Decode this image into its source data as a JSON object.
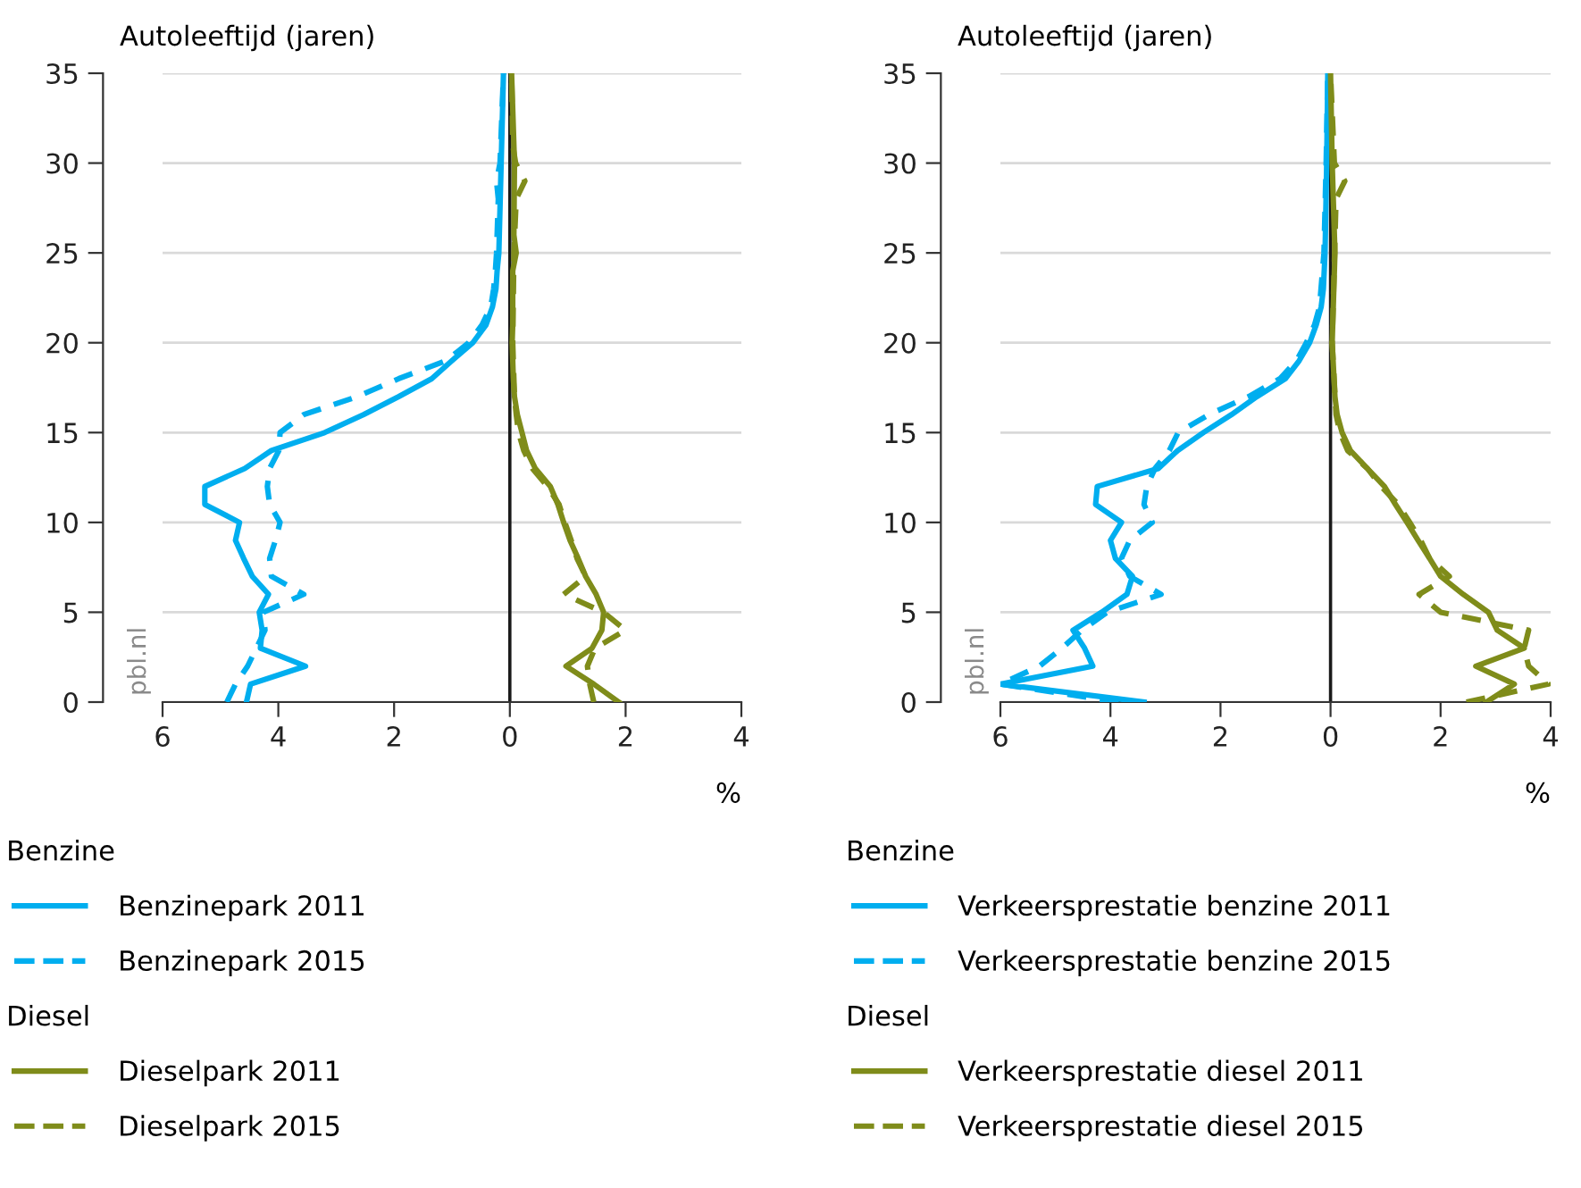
{
  "chart_data": [
    {
      "type": "line",
      "ylabel": "Autoleeftijd (jaren)",
      "xlabel": "%",
      "xlim": [
        -6,
        4
      ],
      "ylim": [
        0,
        35
      ],
      "xticks": [
        {
          "value": -6,
          "label": "6"
        },
        {
          "value": -4,
          "label": "4"
        },
        {
          "value": -2,
          "label": "2"
        },
        0,
        2,
        4
      ],
      "yticks": [
        0,
        5,
        10,
        15,
        20,
        25,
        30,
        35
      ],
      "grid": "y",
      "legend": "bottom",
      "ref_lines": [
        {
          "axis": "x",
          "value": 0,
          "color": "#1a1a1a"
        }
      ],
      "annotations": [
        "pbl.nl",
        "Benzine",
        "Diesel"
      ],
      "series": [
        {
          "name": "Benzinepark 2011",
          "color": "#00aeef",
          "line_style": "solid",
          "x": [
            -4.55,
            -4.48,
            -3.53,
            -4.31,
            -4.28,
            -4.33,
            -4.17,
            -4.45,
            -4.6,
            -4.74,
            -4.67,
            -5.27,
            -5.27,
            -4.58,
            -4.12,
            -3.2,
            -2.53,
            -1.92,
            -1.35,
            -1.0,
            -0.64,
            -0.41,
            -0.3,
            -0.24,
            -0.22,
            -0.19,
            -0.15,
            -0.11
          ],
          "values": [
            0,
            1,
            2,
            3,
            4,
            5,
            6,
            7,
            8,
            9,
            10,
            11,
            12,
            13,
            14,
            15,
            16,
            17,
            18,
            19,
            20,
            21,
            22,
            23,
            24,
            25,
            30,
            35
          ]
        },
        {
          "name": "Benzinepark 2015",
          "color": "#00aeef",
          "line_style": "dashed",
          "x": [
            -4.89,
            -4.74,
            -4.53,
            -4.38,
            -4.23,
            -4.26,
            -3.56,
            -4.12,
            -4.15,
            -4.05,
            -3.97,
            -4.15,
            -4.19,
            -4.15,
            -3.99,
            -3.97,
            -3.56,
            -2.64,
            -1.92,
            -1.1,
            -0.71,
            -0.48,
            -0.33,
            -0.28,
            -0.25,
            -0.23,
            -0.2,
            -0.23,
            -0.17,
            -0.11
          ],
          "values": [
            0,
            1,
            2,
            3,
            4,
            5,
            6,
            7,
            8,
            9,
            10,
            11,
            12,
            13,
            14,
            15,
            16,
            17,
            18,
            19,
            20,
            21,
            22,
            23,
            24,
            25,
            28,
            29,
            30,
            35
          ]
        },
        {
          "name": "Dieselpark 2011",
          "color": "#7f8c1a",
          "line_style": "solid",
          "x": [
            1.88,
            1.45,
            0.97,
            1.42,
            1.59,
            1.62,
            1.49,
            1.31,
            1.18,
            1.04,
            0.93,
            0.83,
            0.7,
            0.44,
            0.29,
            0.21,
            0.13,
            0.08,
            0.06,
            0.05,
            0.04,
            0.05,
            0.05,
            0.05,
            0.05,
            0.11,
            0.07,
            0.08,
            0.03
          ],
          "values": [
            0,
            1,
            2,
            3,
            4,
            5,
            6,
            7,
            8,
            9,
            10,
            11,
            12,
            13,
            14,
            15,
            16,
            17,
            18,
            19,
            20,
            21,
            22,
            23,
            24,
            25,
            26,
            30,
            35
          ]
        },
        {
          "name": "Dieselpark 2015",
          "color": "#7f8c1a",
          "line_style": "dashed",
          "x": [
            1.45,
            1.38,
            1.34,
            1.47,
            2.0,
            1.62,
            0.93,
            1.31,
            1.16,
            1.06,
            0.95,
            0.85,
            0.65,
            0.39,
            0.24,
            0.15,
            0.11,
            0.08,
            0.05,
            0.07,
            0.11,
            0.26,
            0.1,
            0.05,
            0.03
          ],
          "values": [
            0,
            1,
            2,
            3,
            4,
            5,
            6,
            7,
            8,
            9,
            10,
            11,
            12,
            13,
            14,
            15,
            16,
            17,
            20,
            25,
            28,
            29,
            30,
            31,
            35
          ]
        }
      ]
    },
    {
      "type": "line",
      "ylabel": "Autoleeftijd (jaren)",
      "xlabel": "%",
      "xlim": [
        -6,
        4
      ],
      "ylim": [
        0,
        35
      ],
      "xticks": [
        {
          "value": -6,
          "label": "6"
        },
        {
          "value": -4,
          "label": "4"
        },
        {
          "value": -2,
          "label": "2"
        },
        0,
        2,
        4
      ],
      "yticks": [
        0,
        5,
        10,
        15,
        20,
        25,
        30,
        35
      ],
      "grid": "y",
      "legend": "bottom",
      "ref_lines": [
        {
          "axis": "x",
          "value": 0,
          "color": "#1a1a1a"
        }
      ],
      "annotations": [
        "pbl.nl",
        "Benzine",
        "Diesel"
      ],
      "series": [
        {
          "name": "Verkeersprestatie benzine 2011",
          "color": "#00aeef",
          "line_style": "solid",
          "x": [
            -3.39,
            -6.0,
            -4.32,
            -4.47,
            -4.68,
            -4.16,
            -3.7,
            -3.6,
            -3.91,
            -4.0,
            -3.8,
            -4.27,
            -4.24,
            -3.13,
            -2.78,
            -2.31,
            -1.8,
            -1.34,
            -0.82,
            -0.57,
            -0.38,
            -0.26,
            -0.17,
            -0.13,
            -0.1,
            -0.07,
            -0.05
          ],
          "values": [
            0,
            1,
            2,
            3,
            4,
            5,
            6,
            7,
            8,
            9,
            10,
            11,
            12,
            13,
            14,
            15,
            16,
            17,
            18,
            19,
            20,
            21,
            22,
            23,
            25,
            30,
            35
          ]
        },
        {
          "name": "Verkeersprestatie benzine 2015",
          "color": "#00aeef",
          "line_style": "dashed",
          "x": [
            -3.85,
            -6.0,
            -5.29,
            -4.88,
            -4.52,
            -4.06,
            -3.08,
            -3.65,
            -3.8,
            -3.65,
            -3.24,
            -3.39,
            -3.34,
            -3.19,
            -2.93,
            -2.77,
            -2.21,
            -1.49,
            -0.92,
            -0.62,
            -0.44,
            -0.29,
            -0.2,
            -0.12,
            -0.08,
            -0.05
          ],
          "values": [
            0,
            1,
            2,
            3,
            4,
            5,
            6,
            7,
            8,
            9,
            10,
            11,
            12,
            13,
            14,
            15,
            16,
            17,
            18,
            19,
            20,
            21,
            22,
            25,
            30,
            35
          ]
        },
        {
          "name": "Verkeersprestatie diesel 2011",
          "color": "#7f8c1a",
          "line_style": "solid",
          "x": [
            2.83,
            3.34,
            2.64,
            3.52,
            3.03,
            2.87,
            2.41,
            2.0,
            1.8,
            1.59,
            1.39,
            1.18,
            0.98,
            0.67,
            0.36,
            0.21,
            0.12,
            0.08,
            0.03,
            0.08,
            0.03,
            0.0
          ],
          "values": [
            0,
            1,
            2,
            3,
            4,
            5,
            6,
            7,
            8,
            9,
            10,
            11,
            12,
            13,
            14,
            15,
            16,
            17,
            20,
            25,
            30,
            35
          ]
        },
        {
          "name": "Verkeersprestatie diesel 2015",
          "color": "#7f8c1a",
          "line_style": "dashed",
          "x": [
            2.47,
            3.96,
            3.6,
            3.52,
            3.6,
            2.0,
            1.61,
            2.16,
            1.8,
            1.64,
            1.44,
            1.23,
            0.92,
            0.67,
            0.31,
            0.17,
            0.1,
            0.03,
            0.1,
            0.26,
            0.07,
            0.0
          ],
          "values": [
            0,
            1,
            2,
            3,
            4,
            5,
            6,
            7,
            8,
            9,
            10,
            11,
            12,
            13,
            14,
            15,
            16,
            20,
            28,
            29,
            30,
            35
          ]
        }
      ]
    }
  ]
}
